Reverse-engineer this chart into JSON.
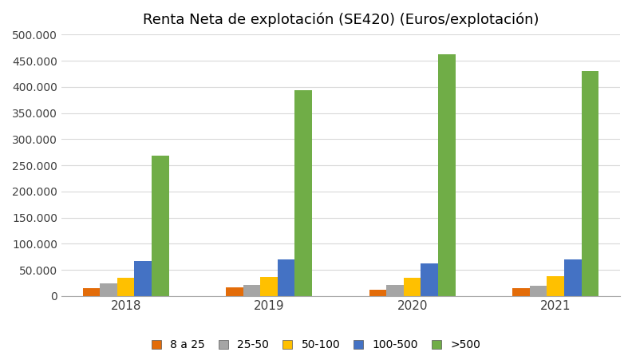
{
  "title": "Renta Neta de explotación (SE420) (Euros/explotación)",
  "years": [
    "2018",
    "2019",
    "2020",
    "2021"
  ],
  "categories": [
    "8 a 25",
    "25-50",
    "50-100",
    "100-500",
    ">500"
  ],
  "colors": [
    "#E36C09",
    "#A5A5A5",
    "#FFC000",
    "#4472C4",
    "#70AD47"
  ],
  "values": {
    "8 a 25": [
      15000,
      17000,
      12000,
      15000
    ],
    "25-50": [
      25000,
      22000,
      22000,
      20000
    ],
    "50-100": [
      35000,
      37000,
      35000,
      38000
    ],
    "100-500": [
      67000,
      70000,
      63000,
      70000
    ],
    ">500": [
      268000,
      393000,
      462000,
      430000
    ]
  },
  "ylim": [
    0,
    500000
  ],
  "yticks": [
    0,
    50000,
    100000,
    150000,
    200000,
    250000,
    300000,
    350000,
    400000,
    450000,
    500000
  ],
  "ytick_labels": [
    "0",
    "50.000",
    "100.000",
    "150.000",
    "200.000",
    "250.000",
    "300.000",
    "350.000",
    "400.000",
    "450.000",
    "500.000"
  ],
  "background_color": "#FFFFFF",
  "grid_color": "#D9D9D9",
  "title_fontsize": 13
}
